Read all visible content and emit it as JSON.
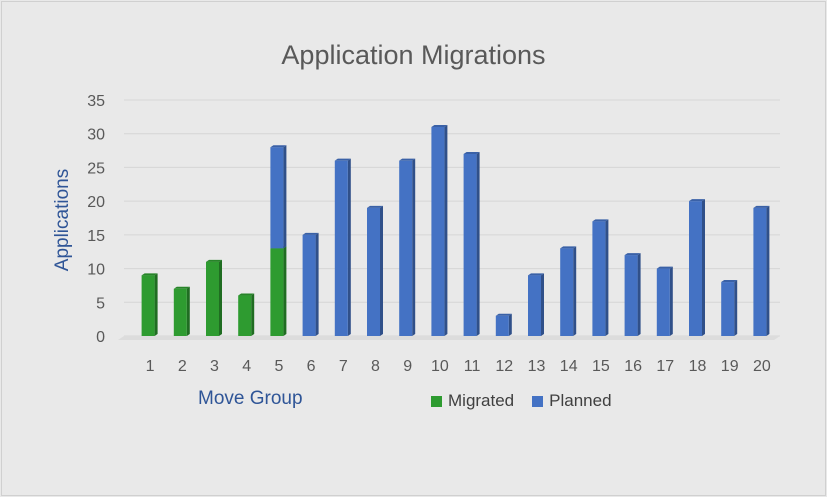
{
  "chart_data": {
    "type": "bar",
    "stacked": true,
    "title": "Application Migrations",
    "xlabel": "Move Group",
    "ylabel": "Applications",
    "ylim": [
      0,
      35
    ],
    "yticks": [
      0,
      5,
      10,
      15,
      20,
      25,
      30,
      35
    ],
    "categories": [
      "1",
      "2",
      "3",
      "4",
      "5",
      "6",
      "7",
      "8",
      "9",
      "10",
      "11",
      "12",
      "13",
      "14",
      "15",
      "16",
      "17",
      "18",
      "19",
      "20"
    ],
    "series": [
      {
        "name": "Migrated",
        "color": "#2e9b30",
        "values": [
          9,
          7,
          11,
          6,
          13,
          0,
          0,
          0,
          0,
          0,
          0,
          0,
          0,
          0,
          0,
          0,
          0,
          0,
          0,
          0
        ]
      },
      {
        "name": "Planned",
        "color": "#4472c4",
        "values": [
          0,
          0,
          0,
          0,
          15,
          15,
          26,
          19,
          26,
          31,
          27,
          3,
          9,
          13,
          17,
          12,
          10,
          20,
          8,
          19
        ]
      }
    ],
    "grid": true,
    "legend_position": "bottom"
  }
}
